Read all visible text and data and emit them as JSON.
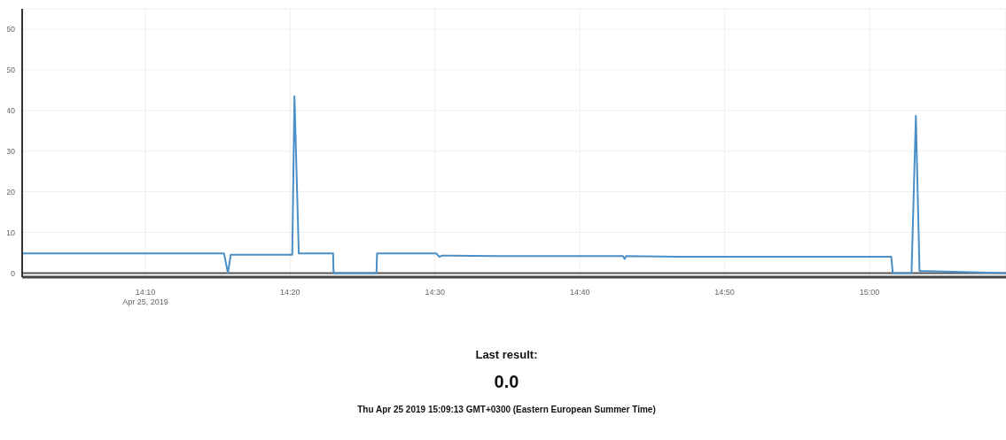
{
  "chart_data": {
    "type": "line",
    "x": [
      14.025,
      14.2573,
      14.2617,
      14.265,
      14.3358,
      14.3383,
      14.3433,
      14.3828,
      14.3833,
      14.4327,
      14.4333,
      14.5017,
      14.505,
      14.5083,
      14.57,
      14.7162,
      14.7183,
      14.72,
      14.785,
      15.025,
      15.0267,
      15.0483,
      15.0533,
      15.0575,
      15.1567
    ],
    "series": [
      {
        "color": "#4a8fc7",
        "values": [
          4.8,
          4.8,
          0,
          4.5,
          4.5,
          43.5,
          4.8,
          4.8,
          0,
          0,
          4.8,
          4.8,
          4.0,
          4.3,
          4.2,
          4.2,
          3.5,
          4.2,
          4.0,
          4.0,
          0,
          0,
          38.7,
          0.5,
          0
        ]
      }
    ],
    "xlim": [
      14.025,
      15.157
    ],
    "xticks": [
      {
        "value": 14.1667,
        "label": "14:10\nApr 25, 2019"
      },
      {
        "value": 14.3333,
        "label": "14:20"
      },
      {
        "value": 14.5,
        "label": "14:30"
      },
      {
        "value": 14.6667,
        "label": "14:40"
      },
      {
        "value": 14.8333,
        "label": "14:50"
      },
      {
        "value": 15,
        "label": "15:00"
      }
    ],
    "ylim": [
      -1,
      65
    ],
    "yticks": [
      0,
      10,
      20,
      30,
      40,
      50,
      60
    ],
    "grid": true,
    "marker": "none",
    "line_style": "solid",
    "annotations": [
      "Last result:",
      "0.0",
      "Thu Apr 25 2019 15:09:13 GMT+0300 (Eastern European Summer Time)"
    ]
  }
}
